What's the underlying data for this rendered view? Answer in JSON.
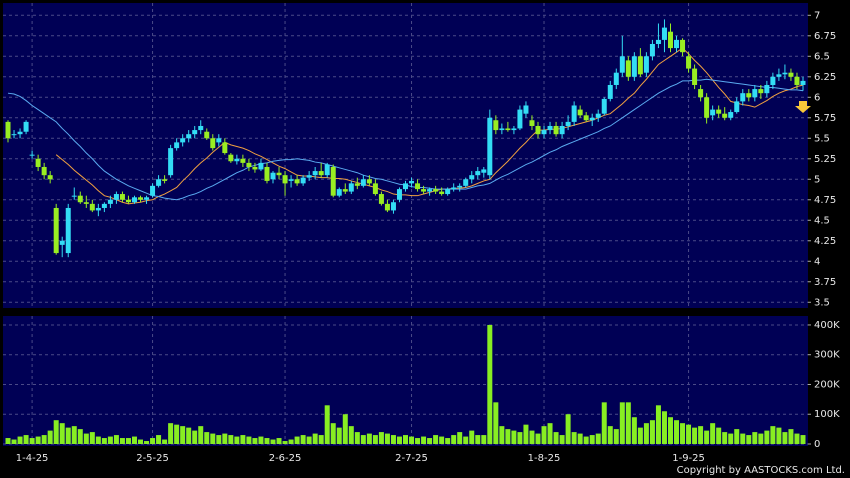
{
  "chart_data": {
    "type": "candlestick",
    "copyright": "Copyright by AASTOCKS.com Ltd.",
    "up_color": "#33ddf5",
    "down_color": "#99ee22",
    "volume_color": "#88ee22",
    "categories": [
      null,
      null,
      null,
      null,
      "1-4-25",
      null,
      null,
      null,
      null,
      null,
      null,
      null,
      null,
      null,
      null,
      null,
      null,
      null,
      null,
      null,
      null,
      null,
      null,
      null,
      "2-5-25",
      null,
      null,
      null,
      null,
      null,
      null,
      null,
      null,
      null,
      null,
      null,
      null,
      null,
      null,
      null,
      null,
      null,
      null,
      null,
      null,
      null,
      "2-6-25",
      null,
      null,
      null,
      null,
      null,
      null,
      null,
      null,
      null,
      null,
      null,
      null,
      null,
      null,
      null,
      null,
      null,
      null,
      null,
      null,
      "2-7-25",
      null,
      null,
      null,
      null,
      null,
      null,
      null,
      null,
      null,
      null,
      null,
      null,
      null,
      null,
      null,
      null,
      null,
      null,
      null,
      null,
      null,
      "1-8-25",
      null,
      null,
      null,
      null,
      null,
      null,
      null,
      null,
      null,
      null,
      null,
      null,
      null,
      null,
      null,
      null,
      null,
      null,
      null,
      null,
      null,
      null,
      null,
      "1-9-25",
      null,
      null,
      null,
      null,
      null,
      null,
      null,
      null,
      null,
      null,
      null,
      null,
      null,
      null,
      null,
      null,
      null,
      null,
      null
    ],
    "open": [
      5.7,
      5.55,
      5.55,
      5.58,
      5.3,
      5.25,
      5.15,
      5.05,
      4.65,
      4.2,
      4.1,
      4.8,
      4.8,
      4.72,
      4.7,
      4.62,
      4.65,
      4.7,
      4.75,
      4.82,
      4.75,
      4.72,
      4.78,
      4.75,
      4.8,
      4.92,
      5.0,
      5.05,
      5.38,
      5.45,
      5.5,
      5.55,
      5.6,
      5.58,
      5.5,
      5.45,
      5.45,
      5.3,
      5.22,
      5.25,
      5.2,
      5.15,
      5.12,
      5.15,
      5.0,
      5.08,
      5.05,
      4.98,
      5.0,
      4.95,
      5.02,
      5.05,
      5.1,
      5.05,
      5.15,
      4.8,
      4.88,
      4.85,
      4.95,
      4.92,
      5.0,
      4.95,
      4.82,
      4.7,
      4.62,
      4.75,
      4.88,
      4.95,
      4.95,
      4.88,
      4.85,
      4.88,
      4.85,
      4.82,
      4.88,
      4.9,
      4.92,
      5.0,
      5.05,
      5.08,
      5.05,
      5.72,
      5.6,
      5.62,
      5.6,
      5.62,
      5.8,
      5.72,
      5.65,
      5.55,
      5.6,
      5.65,
      5.55,
      5.65,
      5.7,
      5.85,
      5.78,
      5.72,
      5.75,
      5.8,
      5.98,
      6.15,
      6.3,
      6.45,
      6.25,
      6.5,
      6.3,
      6.5,
      6.65,
      6.7,
      6.8,
      6.6,
      6.7,
      6.5,
      6.35,
      6.1,
      6.0,
      5.78,
      5.85,
      5.8,
      5.75,
      5.82,
      5.95,
      6.05,
      6.0,
      6.1,
      6.05,
      6.15,
      6.25,
      6.28,
      6.3,
      6.25,
      6.15
    ],
    "high": [
      5.72,
      5.6,
      5.62,
      5.72,
      5.35,
      5.3,
      5.2,
      5.1,
      4.7,
      4.3,
      4.7,
      4.9,
      4.85,
      4.8,
      4.75,
      4.7,
      4.72,
      4.8,
      4.85,
      4.85,
      4.8,
      4.8,
      4.8,
      4.8,
      4.95,
      5.05,
      5.05,
      5.42,
      5.5,
      5.55,
      5.6,
      5.65,
      5.72,
      5.62,
      5.55,
      5.55,
      5.5,
      5.32,
      5.3,
      5.3,
      5.25,
      5.2,
      5.25,
      5.2,
      5.1,
      5.15,
      5.1,
      5.05,
      5.05,
      5.05,
      5.1,
      5.15,
      5.2,
      5.2,
      5.18,
      4.9,
      4.95,
      4.98,
      5.02,
      5.05,
      5.05,
      5.0,
      4.85,
      4.75,
      4.75,
      4.9,
      4.98,
      5.02,
      5.0,
      4.92,
      4.9,
      4.92,
      4.9,
      4.9,
      4.95,
      4.95,
      5.02,
      5.1,
      5.15,
      5.15,
      5.85,
      5.78,
      5.68,
      5.7,
      5.65,
      5.9,
      5.95,
      5.78,
      5.7,
      5.65,
      5.7,
      5.7,
      5.7,
      5.78,
      5.95,
      5.9,
      5.82,
      5.8,
      5.85,
      6.0,
      6.2,
      6.35,
      6.75,
      6.5,
      6.55,
      6.6,
      6.55,
      6.7,
      6.9,
      6.95,
      6.9,
      6.75,
      6.72,
      6.55,
      6.4,
      6.15,
      6.05,
      5.9,
      5.9,
      5.88,
      5.85,
      6.0,
      6.1,
      6.1,
      6.15,
      6.15,
      6.2,
      6.3,
      6.35,
      6.4,
      6.35,
      6.3,
      6.25
    ],
    "low": [
      5.45,
      5.5,
      5.5,
      5.55,
      5.25,
      5.1,
      5.0,
      4.95,
      4.08,
      4.05,
      4.05,
      4.75,
      4.7,
      4.65,
      4.6,
      4.55,
      4.6,
      4.65,
      4.7,
      4.72,
      4.7,
      4.7,
      4.72,
      4.7,
      4.78,
      4.9,
      4.95,
      5.02,
      5.35,
      5.4,
      5.45,
      5.5,
      5.55,
      5.48,
      5.35,
      5.4,
      5.3,
      5.2,
      5.18,
      5.15,
      5.1,
      5.08,
      5.1,
      4.95,
      4.95,
      5.0,
      4.8,
      4.9,
      4.92,
      4.92,
      4.98,
      5.0,
      5.02,
      5.02,
      4.78,
      4.78,
      4.82,
      4.82,
      4.88,
      4.9,
      4.92,
      4.8,
      4.68,
      4.6,
      4.58,
      4.72,
      4.85,
      4.9,
      4.85,
      4.82,
      4.8,
      4.82,
      4.8,
      4.8,
      4.85,
      4.85,
      4.9,
      4.95,
      5.0,
      5.02,
      5.0,
      5.55,
      5.55,
      5.58,
      5.55,
      5.6,
      5.75,
      5.6,
      5.5,
      5.5,
      5.55,
      5.52,
      5.5,
      5.6,
      5.65,
      5.75,
      5.7,
      5.65,
      5.7,
      5.78,
      5.95,
      6.1,
      6.25,
      6.2,
      6.2,
      6.25,
      6.25,
      6.45,
      6.6,
      6.55,
      6.55,
      6.55,
      6.5,
      6.3,
      6.1,
      5.95,
      5.68,
      5.72,
      5.75,
      5.72,
      5.72,
      5.8,
      5.9,
      5.95,
      5.95,
      5.98,
      6.0,
      6.1,
      6.2,
      6.22,
      6.2,
      6.1,
      6.08
    ],
    "close": [
      5.5,
      5.55,
      5.58,
      5.7,
      5.3,
      5.15,
      5.05,
      5.0,
      4.1,
      4.25,
      4.65,
      4.8,
      4.72,
      4.7,
      4.62,
      4.65,
      4.7,
      4.75,
      4.82,
      4.75,
      4.72,
      4.78,
      4.75,
      4.78,
      4.92,
      5.0,
      4.98,
      5.38,
      5.45,
      5.5,
      5.55,
      5.6,
      5.65,
      5.5,
      5.38,
      5.5,
      5.32,
      5.22,
      5.25,
      5.2,
      5.15,
      5.12,
      5.2,
      4.98,
      5.08,
      5.05,
      4.95,
      5.0,
      4.95,
      5.02,
      5.05,
      5.1,
      5.05,
      5.18,
      4.8,
      4.88,
      4.85,
      4.95,
      4.92,
      5.0,
      4.95,
      4.82,
      4.7,
      4.62,
      4.72,
      4.88,
      4.95,
      4.98,
      4.88,
      4.85,
      4.88,
      4.85,
      4.82,
      4.88,
      4.9,
      4.92,
      5.0,
      5.05,
      5.1,
      5.12,
      5.75,
      5.6,
      5.62,
      5.6,
      5.62,
      5.85,
      5.9,
      5.65,
      5.55,
      5.6,
      5.65,
      5.55,
      5.65,
      5.7,
      5.9,
      5.78,
      5.72,
      5.75,
      5.8,
      5.98,
      6.15,
      6.3,
      6.5,
      6.25,
      6.5,
      6.28,
      6.5,
      6.65,
      6.7,
      6.85,
      6.6,
      6.7,
      6.55,
      6.35,
      6.15,
      6.0,
      5.75,
      5.85,
      5.8,
      5.75,
      5.82,
      5.95,
      6.05,
      6.0,
      6.1,
      6.05,
      6.15,
      6.25,
      6.28,
      6.3,
      6.25,
      6.15,
      6.2
    ],
    "volume": [
      20000,
      15000,
      25000,
      30000,
      20000,
      25000,
      30000,
      45000,
      80000,
      70000,
      55000,
      60000,
      50000,
      35000,
      40000,
      25000,
      20000,
      25000,
      30000,
      20000,
      20000,
      25000,
      15000,
      10000,
      20000,
      30000,
      15000,
      70000,
      65000,
      60000,
      55000,
      45000,
      60000,
      40000,
      35000,
      30000,
      35000,
      30000,
      25000,
      30000,
      25000,
      20000,
      25000,
      20000,
      15000,
      20000,
      10000,
      15000,
      25000,
      30000,
      25000,
      35000,
      30000,
      130000,
      70000,
      55000,
      100000,
      60000,
      40000,
      30000,
      35000,
      30000,
      40000,
      35000,
      30000,
      25000,
      30000,
      25000,
      20000,
      25000,
      20000,
      30000,
      25000,
      20000,
      30000,
      40000,
      25000,
      45000,
      30000,
      30000,
      400000,
      140000,
      60000,
      50000,
      45000,
      40000,
      65000,
      45000,
      35000,
      60000,
      70000,
      40000,
      30000,
      100000,
      40000,
      35000,
      25000,
      30000,
      35000,
      140000,
      60000,
      50000,
      140000,
      140000,
      90000,
      55000,
      70000,
      80000,
      130000,
      110000,
      90000,
      80000,
      70000,
      65000,
      55000,
      60000,
      45000,
      70000,
      55000,
      40000,
      35000,
      50000,
      35000,
      30000,
      40000,
      35000,
      45000,
      60000,
      55000,
      40000,
      50000,
      35000,
      30000
    ],
    "ma_lines": [
      {
        "color": "#f0a040",
        "values": [
          null,
          null,
          null,
          null,
          null,
          null,
          null,
          null,
          5.3,
          5.24,
          5.18,
          5.11,
          5.05,
          4.99,
          4.93,
          4.86,
          4.8,
          4.78,
          4.75,
          4.72,
          4.7,
          4.71,
          4.72,
          4.74,
          4.75,
          4.79,
          4.82,
          4.86,
          4.9,
          4.98,
          5.05,
          5.13,
          5.2,
          5.26,
          5.33,
          5.39,
          5.45,
          5.42,
          5.4,
          5.38,
          5.35,
          5.31,
          5.28,
          5.24,
          5.2,
          5.16,
          5.13,
          5.09,
          5.05,
          5.04,
          5.04,
          5.03,
          5.02,
          5.02,
          5.01,
          5.01,
          5.0,
          4.98,
          4.96,
          4.94,
          4.92,
          4.9,
          4.87,
          4.85,
          4.82,
          4.81,
          4.81,
          4.8,
          4.8,
          4.82,
          4.84,
          4.86,
          4.88,
          4.88,
          4.89,
          4.89,
          4.9,
          4.92,
          4.95,
          4.98,
          5.0,
          5.08,
          5.15,
          5.22,
          5.3,
          5.38,
          5.45,
          5.53,
          5.6,
          5.6,
          5.61,
          5.61,
          5.62,
          5.64,
          5.66,
          5.68,
          5.7,
          5.72,
          5.75,
          5.78,
          5.8,
          5.86,
          5.92,
          5.99,
          6.05,
          6.14,
          6.22,
          6.31,
          6.4,
          6.45,
          6.5,
          6.55,
          6.6,
          6.53,
          6.45,
          6.38,
          6.3,
          6.21,
          6.12,
          6.04,
          5.95,
          5.93,
          5.91,
          5.9,
          5.88,
          5.92,
          5.96,
          6.01,
          6.05,
          6.08,
          6.1,
          6.13,
          6.15
        ]
      },
      {
        "color": "#5aaaf0",
        "values": [
          6.05,
          6.04,
          6.01,
          5.96,
          5.9,
          5.85,
          5.8,
          5.75,
          5.7,
          5.62,
          5.55,
          5.47,
          5.4,
          5.32,
          5.25,
          5.17,
          5.1,
          5.05,
          5.0,
          4.96,
          4.92,
          4.89,
          4.86,
          4.83,
          4.8,
          4.79,
          4.77,
          4.76,
          4.75,
          4.77,
          4.8,
          4.82,
          4.85,
          4.89,
          4.92,
          4.96,
          5.0,
          5.04,
          5.08,
          5.11,
          5.15,
          5.17,
          5.19,
          5.2,
          5.22,
          5.23,
          5.24,
          5.24,
          5.25,
          5.24,
          5.23,
          5.21,
          5.2,
          5.18,
          5.16,
          5.14,
          5.12,
          5.1,
          5.08,
          5.05,
          5.03,
          5.01,
          5.0,
          4.98,
          4.96,
          4.94,
          4.93,
          4.91,
          4.9,
          4.9,
          4.89,
          4.88,
          4.88,
          4.88,
          4.88,
          4.88,
          4.88,
          4.9,
          4.92,
          4.93,
          4.95,
          4.99,
          5.03,
          5.06,
          5.1,
          5.14,
          5.18,
          5.21,
          5.25,
          5.29,
          5.33,
          5.36,
          5.4,
          5.43,
          5.46,
          5.49,
          5.52,
          5.55,
          5.58,
          5.62,
          5.65,
          5.7,
          5.75,
          5.8,
          5.85,
          5.9,
          5.95,
          6.0,
          6.05,
          6.09,
          6.13,
          6.16,
          6.2,
          6.2,
          6.21,
          6.21,
          6.22,
          6.21,
          6.2,
          6.19,
          6.18,
          6.17,
          6.16,
          6.15,
          6.14,
          6.13,
          6.12,
          6.12,
          6.11,
          6.1,
          6.09,
          6.09,
          6.08
        ]
      }
    ],
    "ylim": [
      3.43,
      7.15
    ],
    "yticks": [
      3.5,
      3.75,
      4,
      4.25,
      4.5,
      4.75,
      5,
      5.25,
      5.5,
      5.75,
      6,
      6.25,
      6.5,
      6.75,
      7
    ],
    "volume_ylim": [
      0,
      420000
    ],
    "volume_ticks": [
      0,
      {
        "value": 100000,
        "label": "100K"
      },
      {
        "value": 200000,
        "label": "200K"
      },
      {
        "value": 300000,
        "label": "300K"
      },
      {
        "value": 400000,
        "label": "400K"
      }
    ],
    "grid": true
  }
}
